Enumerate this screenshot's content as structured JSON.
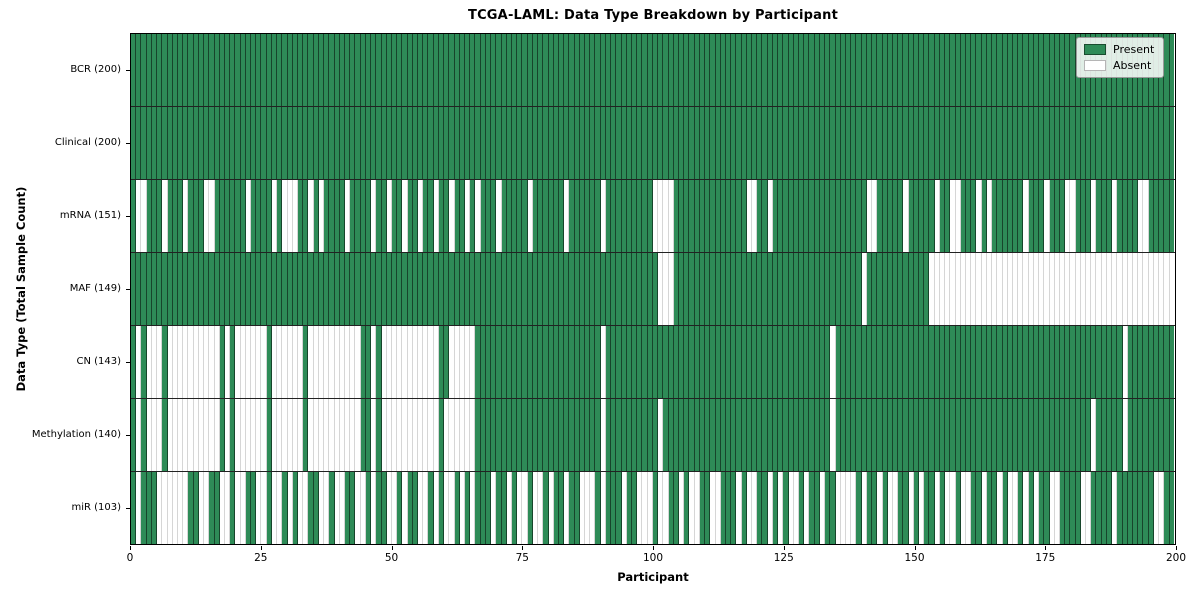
{
  "chart_data": {
    "type": "heatmap",
    "title": "TCGA-LAML: Data Type Breakdown by Participant",
    "xlabel": "Participant",
    "ylabel": "Data Type (Total Sample Count)",
    "xlim": [
      0,
      200
    ],
    "xticks": [
      0,
      25,
      50,
      75,
      100,
      125,
      150,
      175,
      200
    ],
    "grid": false,
    "legend": {
      "position": "upper right",
      "entries": [
        {
          "key": "present",
          "label": "Present",
          "color": "#2e8b57"
        },
        {
          "key": "absent",
          "label": "Absent",
          "color": "#ffffff"
        }
      ]
    },
    "colors": {
      "present": "#2e8b57",
      "absent": "#ffffff",
      "cell_edge": "#1a1a1a",
      "frame": "#000000"
    },
    "participants_total": 200,
    "rows": [
      {
        "data_type": "BCR",
        "label": "BCR (200)",
        "present_count": 200,
        "pattern": [
          "1111111111",
          "1111111111",
          "1111111111",
          "1111111111",
          "1111111111",
          "1111111111",
          "1111111111",
          "1111111111",
          "1111111111",
          "1111111111",
          "1111111111",
          "1111111111",
          "1111111111",
          "1111111111",
          "1111111111",
          "1111111111",
          "1111111111",
          "1111111111",
          "1111111111",
          "1111111111"
        ]
      },
      {
        "data_type": "Clinical",
        "label": "Clinical (200)",
        "present_count": 200,
        "pattern": [
          "1111111111",
          "1111111111",
          "1111111111",
          "1111111111",
          "1111111111",
          "1111111111",
          "1111111111",
          "1111111111",
          "1111111111",
          "1111111111",
          "1111111111",
          "1111111111",
          "1111111111",
          "1111111111",
          "1111111111",
          "1111111111",
          "1111111111",
          "1111111111",
          "1111111111",
          "1111111111"
        ]
      },
      {
        "data_type": "mRNA",
        "label": "mRNA (151)",
        "present_count": 151,
        "pattern": [
          "1001110111",
          "0111001111",
          "1101111010",
          "0011010111",
          "1011110110",
          "1101101101",
          "1011010111",
          "0111110111",
          "1110111111",
          "0111111111",
          "0000111111",
          "1111111100",
          "1101111111",
          "1111111111",
          "1001111101",
          "1111011001",
          "1101011111",
          "1011101110",
          "0111011101",
          "1110011111"
        ]
      },
      {
        "data_type": "MAF",
        "label": "MAF (149)",
        "present_count": 149,
        "pattern": [
          "1111111111",
          "1111111111",
          "1111111111",
          "1111111111",
          "1111111111",
          "1111111111",
          "1111111111",
          "1111111111",
          "1111111111",
          "1111111111",
          "1000111111",
          "1111111111",
          "1111111111",
          "1111111111",
          "0111111111",
          "1110000000",
          "0000000000",
          "0000000000",
          "0000000000",
          "0000000000"
        ]
      },
      {
        "data_type": "CN",
        "label": "CN (143)",
        "present_count": 143,
        "pattern": [
          "1010001000",
          "0000000101",
          "0000001000",
          "0001000000",
          "0000110100",
          "0000000001",
          "1000001111",
          "1111111111",
          "1111111111",
          "0111111111",
          "1111111111",
          "1111111111",
          "1111111111",
          "1111011111",
          "1111111111",
          "1111111111",
          "1111111111",
          "1111111111",
          "1111111111",
          "0111111111"
        ]
      },
      {
        "data_type": "Methylation",
        "label": "Methylation (140)",
        "present_count": 140,
        "pattern": [
          "1010001000",
          "0000000101",
          "0000001000",
          "0001000000",
          "0000110100",
          "0000000001",
          "0000001111",
          "1111111111",
          "1111111111",
          "0111111111",
          "1011111111",
          "1111111111",
          "1111111111",
          "1111011111",
          "1111111111",
          "1111111111",
          "1111111111",
          "1111111111",
          "1111011111",
          "0111111111"
        ]
      },
      {
        "data_type": "miR",
        "label": "miR (103)",
        "present_count": 103,
        "pattern": [
          "1011100000",
          "0110011001",
          "0011001001",
          "0100110010",
          "0110010110",
          "0101100101",
          "0010101110",
          "1101001001",
          "0110110001",
          "0111011000",
          "1001101001",
          "1001110100",
          "1101010010",
          "1101100001",
          "0110100110",
          "1011010010",
          "0110110100",
          "1010110011",
          "1100111101",
          "1111110011"
        ]
      }
    ]
  }
}
